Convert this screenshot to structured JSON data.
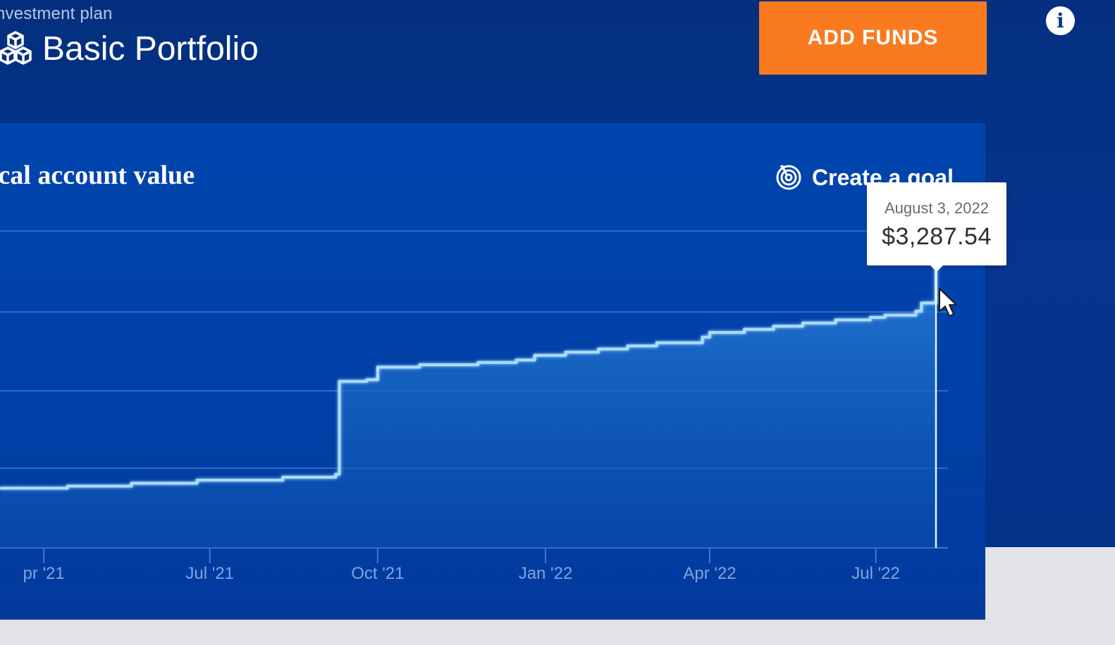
{
  "header": {
    "plan_label": "nvestment plan",
    "portfolio_title": "Basic Portfolio",
    "portfolio_icon": "cubes-icon",
    "add_funds_label": "ADD FUNDS",
    "add_funds_color": "#fa7a1f",
    "info_icon": "info-icon",
    "info_symbol": "i"
  },
  "chart": {
    "title": "rical account value",
    "create_goal_label": "Create a goal",
    "create_goal_icon": "target-icon",
    "tooltip": {
      "date": "August 3, 2022",
      "value": "$3,287.54"
    }
  },
  "chart_data": {
    "type": "area",
    "title": "rical account value",
    "xlabel": "",
    "ylabel": "",
    "grid": true,
    "x_tick_labels": [
      "pr '21",
      "Jul '21",
      "Oct '21",
      "Jan '22",
      "Apr '22",
      "Jul '22"
    ],
    "x_ticks": [
      "2021-04-01",
      "2021-07-01",
      "2021-10-01",
      "2022-01-01",
      "2022-04-01",
      "2022-07-01"
    ],
    "xlim": [
      "2021-03-08",
      "2022-08-03"
    ],
    "step": true,
    "series": [
      {
        "values": [
          [
            "2021-03-08",
            1500
          ],
          [
            "2021-04-14",
            1510
          ],
          [
            "2021-05-19",
            1525
          ],
          [
            "2021-06-24",
            1540
          ],
          [
            "2021-08-10",
            1555
          ],
          [
            "2021-09-08",
            1570
          ],
          [
            "2021-09-10",
            2160
          ],
          [
            "2021-09-25",
            2170
          ],
          [
            "2021-10-01",
            2250
          ],
          [
            "2021-10-24",
            2265
          ],
          [
            "2021-11-25",
            2280
          ],
          [
            "2021-12-16",
            2295
          ],
          [
            "2021-12-26",
            2325
          ],
          [
            "2022-01-12",
            2345
          ],
          [
            "2022-01-30",
            2365
          ],
          [
            "2022-02-15",
            2385
          ],
          [
            "2022-03-03",
            2405
          ],
          [
            "2022-03-28",
            2440
          ],
          [
            "2022-04-01",
            2470
          ],
          [
            "2022-04-20",
            2490
          ],
          [
            "2022-05-06",
            2510
          ],
          [
            "2022-05-22",
            2530
          ],
          [
            "2022-06-09",
            2550
          ],
          [
            "2022-06-28",
            2565
          ],
          [
            "2022-07-06",
            2580
          ],
          [
            "2022-07-23",
            2605
          ],
          [
            "2022-07-26",
            2655
          ],
          [
            "2022-08-03",
            3287.54
          ]
        ]
      }
    ],
    "highlight": {
      "x": "2022-08-03",
      "y": 3287.54
    },
    "colors": {
      "line": "#a9dcff",
      "area_top": "#2d86e0",
      "area_bottom": "#0a4fb0",
      "grid": "#3e7ad0"
    }
  }
}
